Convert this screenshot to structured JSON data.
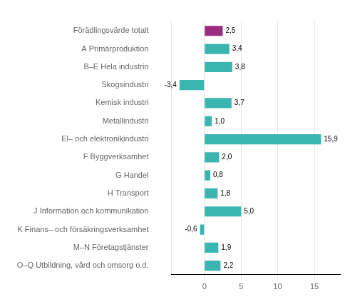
{
  "chart_data": {
    "type": "bar",
    "orientation": "horizontal",
    "categories": [
      "O–Q Utbildning, vård och omsorg o.d.",
      "M–N Företagstjänster",
      "K Finans– och försäkringsverksamhet",
      "J Information och kommunikation",
      "H Transport",
      "G Handel",
      "F Byggverksamhet",
      "El– och elektronikindustri",
      "Metallindustri",
      "Kemisk industri",
      "Skogsindustri",
      "B–E Hela industrin",
      "A Primärproduktion",
      "Förädlingsvärde totalt"
    ],
    "values": [
      2.2,
      1.9,
      -0.6,
      5.0,
      1.8,
      0.8,
      2.0,
      15.9,
      1.0,
      3.7,
      -3.4,
      3.8,
      3.4,
      2.5
    ],
    "value_labels": [
      "2,2",
      "1,9",
      "-0,6",
      "5,0",
      "1,8",
      "0,8",
      "2,0",
      "15,9",
      "1,0",
      "3,7",
      "-3,4",
      "3,8",
      "3,4",
      "2,5"
    ],
    "data_labels": true,
    "colors": [
      "#3ab5b0",
      "#3ab5b0",
      "#3ab5b0",
      "#3ab5b0",
      "#3ab5b0",
      "#3ab5b0",
      "#3ab5b0",
      "#3ab5b0",
      "#3ab5b0",
      "#3ab5b0",
      "#3ab5b0",
      "#3ab5b0",
      "#3ab5b0",
      "#9b2c7e"
    ],
    "xlim": [
      -4.5,
      18.5
    ],
    "xticks": [
      0,
      5,
      10,
      15
    ],
    "grid": true
  }
}
